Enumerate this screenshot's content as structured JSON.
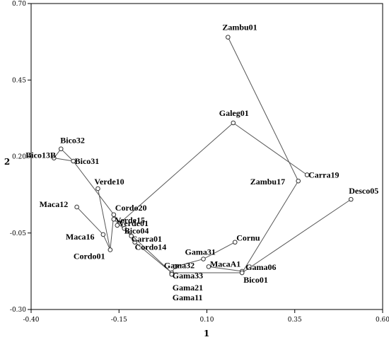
{
  "chart_data": {
    "type": "scatter",
    "xlabel": "1",
    "ylabel": "2",
    "xlim": [
      -0.4,
      0.6
    ],
    "ylim": [
      -0.3,
      0.7
    ],
    "xticks": [
      -0.4,
      -0.15,
      0.1,
      0.35,
      0.6
    ],
    "yticks": [
      0.7,
      0.45,
      0.2,
      -0.05,
      -0.3
    ],
    "xtick_labels": [
      "-0.40",
      "-0.15",
      "0.10",
      "0.35",
      "0.60"
    ],
    "ytick_labels": [
      "0.70",
      "0.45",
      "0.20",
      "-0.05",
      "-0.30"
    ],
    "grid": false,
    "points": [
      {
        "label": "Zambu01",
        "x": 0.16,
        "y": 0.59
      },
      {
        "label": "Galeg01",
        "x": 0.175,
        "y": 0.31
      },
      {
        "label": "Carra19",
        "x": 0.385,
        "y": 0.14
      },
      {
        "label": "Zambu17",
        "x": 0.36,
        "y": 0.12
      },
      {
        "label": "Desco05",
        "x": 0.51,
        "y": 0.06
      },
      {
        "label": "Bico32",
        "x": -0.315,
        "y": 0.225
      },
      {
        "label": "Bico13B",
        "x": -0.335,
        "y": 0.195
      },
      {
        "label": "Bico31",
        "x": -0.28,
        "y": 0.185
      },
      {
        "label": "Verde10",
        "x": -0.21,
        "y": 0.095
      },
      {
        "label": "Maca12",
        "x": -0.27,
        "y": 0.035
      },
      {
        "label": "Cordo20",
        "x": -0.165,
        "y": 0.01
      },
      {
        "label": "Verde15",
        "x": -0.165,
        "y": -0.005
      },
      {
        "label": "Verde01",
        "x": -0.155,
        "y": -0.025
      },
      {
        "label": "Bico04",
        "x": -0.135,
        "y": -0.035
      },
      {
        "label": "Maca16",
        "x": -0.195,
        "y": -0.055
      },
      {
        "label": "Carra01",
        "x": -0.115,
        "y": -0.06
      },
      {
        "label": "Cordo01",
        "x": -0.175,
        "y": -0.105
      },
      {
        "label": "Cordo14",
        "x": -0.105,
        "y": -0.08
      },
      {
        "label": "Cornu",
        "x": 0.18,
        "y": -0.08
      },
      {
        "label": "Gama31",
        "x": 0.09,
        "y": -0.135
      },
      {
        "label": "Gama32",
        "x": 0.01,
        "y": -0.16
      },
      {
        "label": "MacaA1",
        "x": 0.105,
        "y": -0.16
      },
      {
        "label": "Gama06",
        "x": 0.2,
        "y": -0.175
      },
      {
        "label": "Bico01",
        "x": 0.2,
        "y": -0.18
      },
      {
        "label": "Gama33",
        "x": 0.0,
        "y": -0.18
      },
      {
        "label": "Gama21",
        "x": 0.0,
        "y": -0.185
      },
      {
        "label": "Gama11",
        "x": 0.0,
        "y": -0.185
      }
    ],
    "edges": [
      [
        "Zambu01",
        "Zambu17"
      ],
      [
        "Zambu17",
        "Bico01"
      ],
      [
        "Galeg01",
        "Carra19"
      ],
      [
        "Galeg01",
        "Verde01"
      ],
      [
        "Desco05",
        "Bico01"
      ],
      [
        "Bico13B",
        "Bico32"
      ],
      [
        "Bico32",
        "Bico31"
      ],
      [
        "Bico13B",
        "Bico31"
      ],
      [
        "Bico31",
        "Bico04"
      ],
      [
        "Bico04",
        "Gama33"
      ],
      [
        "Verde10",
        "Cordo01"
      ],
      [
        "Maca12",
        "Maca16"
      ],
      [
        "Maca16",
        "Cordo01"
      ],
      [
        "Cordo01",
        "Cordo20"
      ],
      [
        "Cordo20",
        "Verde15"
      ],
      [
        "Verde15",
        "Carra01"
      ],
      [
        "Carra01",
        "Cordo14"
      ],
      [
        "Cordo14",
        "Gama33"
      ],
      [
        "Gama33",
        "Gama32"
      ],
      [
        "Gama32",
        "Gama31"
      ],
      [
        "Gama31",
        "Cornu"
      ],
      [
        "Gama33",
        "Bico01"
      ],
      [
        "MacaA1",
        "Gama06"
      ],
      [
        "Gama06",
        "Bico01"
      ]
    ]
  }
}
